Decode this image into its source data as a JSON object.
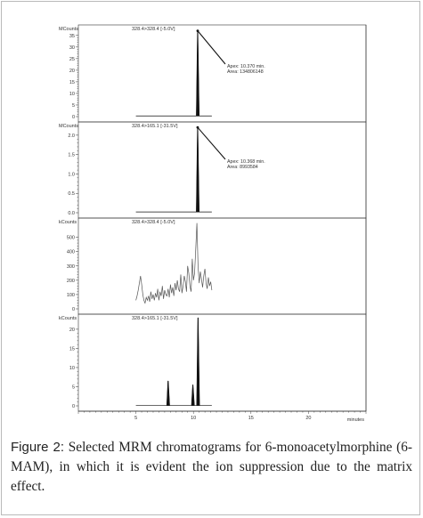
{
  "caption": {
    "label": "Figure 2:",
    "text": "Selected MRM chromatograms for 6-monoacetylmorphine (6-MAM), in which it is evident the ion suppression due to the matrix effect."
  },
  "chart_data": [
    {
      "type": "line",
      "title": "328.4>328.4 [-5.0V]",
      "ylabel": "MCounts",
      "ylim": [
        0,
        38
      ],
      "yticks": [
        0,
        5,
        10,
        15,
        20,
        25,
        30,
        35
      ],
      "xlim": [
        0,
        25
      ],
      "peaks": [
        {
          "x": 10.37,
          "y": 37
        }
      ],
      "baseline": 0.3,
      "annotation": {
        "apex_label": "Apex: 10.370 min.",
        "area_label": "Area: 134806148"
      }
    },
    {
      "type": "line",
      "title": "328.4>165.1 [-31.5V]",
      "ylabel": "MCounts",
      "ylim": [
        0,
        2.25
      ],
      "yticks": [
        0.0,
        0.5,
        1.0,
        1.5,
        2.0
      ],
      "xlim": [
        0,
        25
      ],
      "peaks": [
        {
          "x": 10.368,
          "y": 2.2
        }
      ],
      "baseline": 0.02,
      "annotation": {
        "apex_label": "Apex: 10.368 min.",
        "area_label": "Area: 8993584"
      }
    },
    {
      "type": "line",
      "title": "328.4>328.4 [-5.0V]",
      "ylabel": "kCounts",
      "ylim": [
        0,
        610
      ],
      "yticks": [
        0,
        100,
        200,
        300,
        400,
        500
      ],
      "xlim": [
        0,
        25
      ],
      "trace": {
        "x": [
          5.0,
          5.1,
          5.2,
          5.3,
          5.4,
          5.5,
          5.6,
          5.7,
          5.8,
          5.9,
          6.0,
          6.1,
          6.2,
          6.3,
          6.4,
          6.5,
          6.6,
          6.7,
          6.8,
          6.9,
          7.0,
          7.1,
          7.2,
          7.3,
          7.4,
          7.5,
          7.6,
          7.7,
          7.8,
          7.9,
          8.0,
          8.1,
          8.2,
          8.3,
          8.4,
          8.5,
          8.6,
          8.7,
          8.8,
          8.9,
          9.0,
          9.1,
          9.2,
          9.3,
          9.4,
          9.5,
          9.6,
          9.7,
          9.8,
          9.9,
          10.0,
          10.1,
          10.2,
          10.3,
          10.4,
          10.5,
          10.6,
          10.7,
          10.8,
          10.9,
          11.0,
          11.1,
          11.2,
          11.3,
          11.4,
          11.5,
          11.6
        ],
        "y": [
          60,
          90,
          130,
          180,
          230,
          170,
          100,
          60,
          40,
          80,
          60,
          90,
          50,
          120,
          70,
          100,
          60,
          110,
          80,
          140,
          60,
          120,
          90,
          160,
          70,
          130,
          100,
          90,
          140,
          80,
          170,
          110,
          150,
          90,
          180,
          130,
          200,
          140,
          120,
          240,
          110,
          160,
          230,
          190,
          120,
          300,
          250,
          160,
          120,
          350,
          200,
          250,
          420,
          600,
          300,
          180,
          260,
          210,
          150,
          230,
          280,
          180,
          140,
          220,
          160,
          190,
          130
        ],
        "line_color": "#555555"
      }
    },
    {
      "type": "line",
      "title": "328.4>165.1 [-31.5V]",
      "ylabel": "kCounts",
      "ylim": [
        0,
        23
      ],
      "yticks": [
        0,
        5,
        10,
        15,
        20
      ],
      "xlim": [
        0,
        25
      ],
      "peaks": [
        {
          "x": 7.8,
          "y": 6.5
        },
        {
          "x": 9.95,
          "y": 5.5
        },
        {
          "x": 10.4,
          "y": 23
        }
      ],
      "baseline": 0.1
    }
  ],
  "x_axis": {
    "ticks": [
      5,
      10,
      15,
      20
    ],
    "unit_label": "minutes",
    "range": [
      0,
      25
    ]
  },
  "style": {
    "axis_color": "#333333",
    "peak_color": "#111111",
    "frame_color": "#b9b9b9",
    "caption_color": "#222222"
  }
}
